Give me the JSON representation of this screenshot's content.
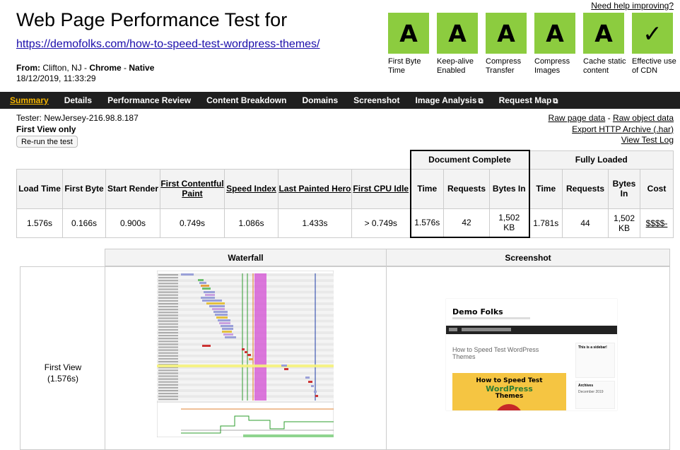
{
  "header": {
    "help_link": "Need help improving?",
    "title": "Web Page Performance Test for",
    "url": "https://demofolks.com/how-to-speed-test-wordpress-themes/",
    "from_label": "From:",
    "location": "Clifton, NJ",
    "browser": "Chrome",
    "connection": "Native",
    "datetime": "18/12/2019, 11:33:29"
  },
  "grades": [
    {
      "value": "A",
      "label": "First Byte Time"
    },
    {
      "value": "A",
      "label": "Keep-alive Enabled"
    },
    {
      "value": "A",
      "label": "Compress Transfer"
    },
    {
      "value": "A",
      "label": "Compress Images"
    },
    {
      "value": "A",
      "label": "Cache static content"
    },
    {
      "value": "✓",
      "label": "Effective use of CDN"
    }
  ],
  "grade_color": "#8ccc3f",
  "nav": {
    "tabs": [
      "Summary",
      "Details",
      "Performance Review",
      "Content Breakdown",
      "Domains",
      "Screenshot",
      "Image Analysis",
      "Request Map"
    ],
    "external_icon": "external-link-icon"
  },
  "summary": {
    "tester": "Tester: NewJersey-216.98.8.187",
    "view": "First View only",
    "rerun": "Re-run the test",
    "links": [
      "Raw page data",
      "Raw object data",
      "Export HTTP Archive (.har)",
      "View Test Log"
    ],
    "link_separator": " - "
  },
  "table": {
    "group_doc": "Document Complete",
    "group_full": "Fully Loaded",
    "cols": [
      "Load Time",
      "First Byte",
      "Start Render",
      "First Contentful Paint",
      "Speed Index",
      "Last Painted Hero",
      "First CPU Idle",
      "Time",
      "Requests",
      "Bytes In",
      "Time",
      "Requests",
      "Bytes In",
      "Cost"
    ],
    "values": [
      "1.576s",
      "0.166s",
      "0.900s",
      "0.749s",
      "1.086s",
      "1.433s",
      "> 0.749s",
      "1.576s",
      "42",
      "1,502 KB",
      "1.781s",
      "44",
      "1,502 KB",
      "$$$$-"
    ]
  },
  "waterfall": {
    "head_waterfall": "Waterfall",
    "head_screenshot": "Screenshot",
    "first_view": "First View",
    "first_view_time": "(1.576s)"
  },
  "screenshot": {
    "brand": "Demo Folks",
    "post_title": "How to Speed Test WordPress Themes",
    "hero_line1": "How to Speed Test",
    "hero_line2": "WordPress",
    "hero_line3": "Themes",
    "widget1_title": "This is a sidebar!",
    "widget2_title": "Archives",
    "widget2_item": "December 2019"
  }
}
